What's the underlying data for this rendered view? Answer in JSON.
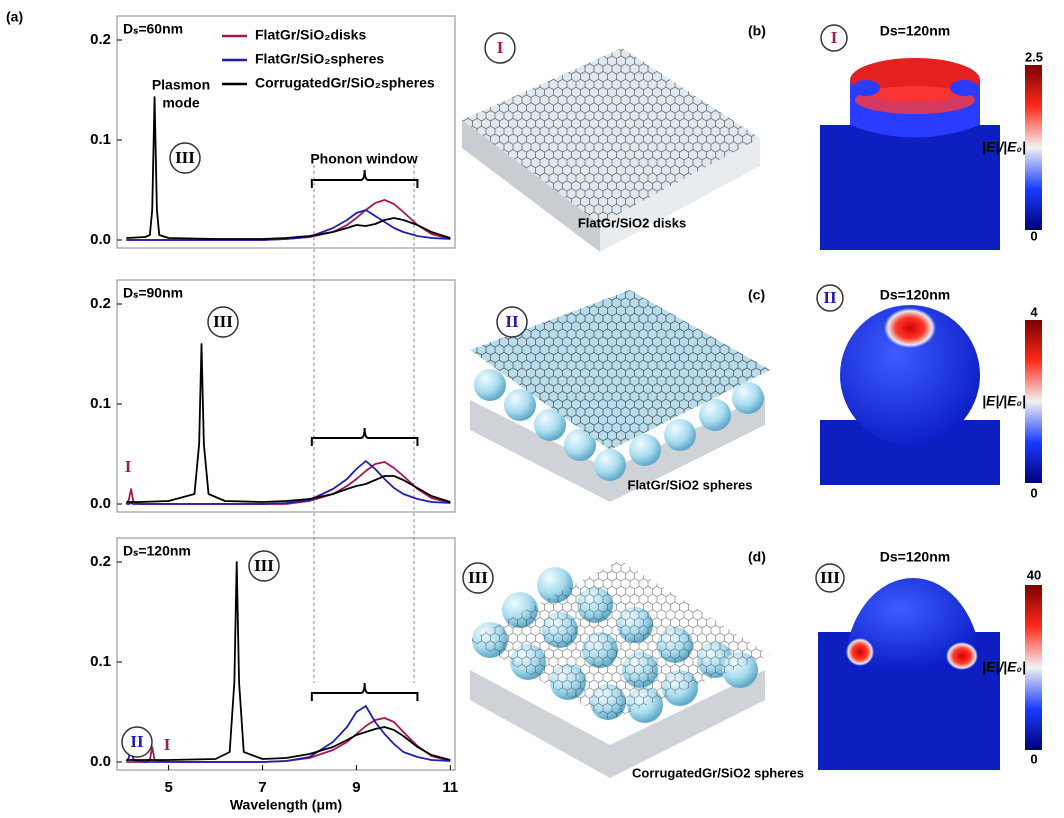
{
  "figure": {
    "panel_label": "(a)",
    "x_label": "Wavelength (μm)"
  },
  "chart_data": [
    {
      "type": "line",
      "label": "Dₛ=60nm",
      "legend": true,
      "annotations": [
        "Plasmon",
        "mode",
        "III",
        "Phonon window"
      ],
      "xlim": [
        3.9,
        11.1
      ],
      "ylim": [
        -0.008,
        0.224
      ],
      "yticks": [
        {
          "value": 0,
          "label": "0.0"
        },
        0.1,
        0.2
      ],
      "x": [
        4.1,
        4.5,
        4.6,
        4.65,
        4.7,
        4.75,
        4.8,
        5.0,
        6,
        7,
        7.5,
        8,
        8.5,
        8.8,
        9.0,
        9.2,
        9.4,
        9.6,
        9.8,
        10.0,
        10.3,
        10.6,
        11
      ],
      "series": [
        {
          "name": "FlatGr/SiO₂disks",
          "color": "#a8164e",
          "values": [
            0,
            0,
            0,
            0,
            0,
            0,
            0,
            0,
            0,
            0,
            0.001,
            0.003,
            0.008,
            0.015,
            0.022,
            0.03,
            0.037,
            0.04,
            0.036,
            0.028,
            0.015,
            0.006,
            0.001
          ]
        },
        {
          "name": "FlatGr/SiO₂spheres",
          "color": "#1f1fb4",
          "values": [
            0,
            0,
            0,
            0,
            0,
            0,
            0,
            0,
            0,
            0,
            0.001,
            0.003,
            0.012,
            0.02,
            0.027,
            0.03,
            0.024,
            0.018,
            0.012,
            0.008,
            0.004,
            0.002,
            0.001
          ]
        },
        {
          "name": "CorrugatedGr/SiO₂spheres",
          "color": "#000000",
          "values": [
            0.002,
            0.003,
            0.005,
            0.03,
            0.143,
            0.03,
            0.005,
            0.002,
            0.001,
            0.001,
            0.002,
            0.004,
            0.008,
            0.012,
            0.015,
            0.014,
            0.016,
            0.02,
            0.022,
            0.02,
            0.015,
            0.008,
            0.002
          ]
        }
      ]
    },
    {
      "type": "line",
      "label": "Dₛ=90nm",
      "legend": false,
      "annotations": [
        "III",
        "I"
      ],
      "xlim": [
        3.9,
        11.1
      ],
      "ylim": [
        -0.008,
        0.224
      ],
      "yticks": [
        {
          "value": 0,
          "label": "0.0"
        },
        0.1,
        0.2
      ],
      "x": [
        4.1,
        4.15,
        4.2,
        4.25,
        4.4,
        5.0,
        5.55,
        5.65,
        5.7,
        5.75,
        5.85,
        6.2,
        7,
        7.5,
        8,
        8.5,
        8.8,
        9.0,
        9.2,
        9.4,
        9.6,
        9.8,
        10.0,
        10.3,
        10.6,
        11
      ],
      "series": [
        {
          "color": "#a8164e",
          "values": [
            0,
            0.004,
            0.015,
            0.002,
            0,
            0,
            0,
            0,
            0,
            0,
            0,
            0,
            0,
            0,
            0.003,
            0.01,
            0.018,
            0.025,
            0.033,
            0.04,
            0.042,
            0.036,
            0.028,
            0.015,
            0.006,
            0.001
          ]
        },
        {
          "color": "#1f1fb4",
          "values": [
            0,
            0,
            0.001,
            0,
            0,
            0,
            0,
            0,
            0,
            0,
            0,
            0,
            0,
            0.001,
            0.004,
            0.015,
            0.025,
            0.035,
            0.043,
            0.035,
            0.025,
            0.016,
            0.01,
            0.005,
            0.002,
            0.001
          ]
        },
        {
          "color": "#000000",
          "values": [
            0.002,
            0.002,
            0.002,
            0.002,
            0.002,
            0.003,
            0.01,
            0.06,
            0.16,
            0.06,
            0.01,
            0.003,
            0.002,
            0.003,
            0.005,
            0.01,
            0.015,
            0.018,
            0.02,
            0.024,
            0.028,
            0.028,
            0.024,
            0.016,
            0.008,
            0.002
          ]
        }
      ]
    },
    {
      "type": "line",
      "label": "Dₛ=120nm",
      "legend": false,
      "annotations": [
        "III",
        "II",
        "I"
      ],
      "xlim": [
        3.9,
        11.1
      ],
      "ylim": [
        -0.008,
        0.224
      ],
      "xticks": [
        5,
        7,
        9,
        11
      ],
      "yticks": [
        {
          "value": 0,
          "label": "0.0"
        },
        0.1,
        0.2
      ],
      "x": [
        4.1,
        4.15,
        4.2,
        4.25,
        4.5,
        4.6,
        4.65,
        4.7,
        5.0,
        6.0,
        6.3,
        6.4,
        6.45,
        6.5,
        6.6,
        7.0,
        7.5,
        8,
        8.5,
        8.8,
        9.0,
        9.2,
        9.4,
        9.6,
        9.8,
        10.0,
        10.3,
        10.6,
        11
      ],
      "series": [
        {
          "color": "#a8164e",
          "values": [
            0,
            0,
            0,
            0,
            0,
            0.002,
            0.015,
            0.002,
            0,
            0,
            0,
            0,
            0,
            0,
            0,
            0,
            0.001,
            0.004,
            0.012,
            0.02,
            0.028,
            0.036,
            0.042,
            0.044,
            0.04,
            0.03,
            0.016,
            0.006,
            0.001
          ]
        },
        {
          "color": "#1f1fb4",
          "values": [
            0.001,
            0.004,
            0.02,
            0.002,
            0,
            0,
            0,
            0,
            0,
            0,
            0,
            0,
            0,
            0,
            0,
            0,
            0.001,
            0.005,
            0.02,
            0.035,
            0.05,
            0.056,
            0.04,
            0.028,
            0.018,
            0.01,
            0.005,
            0.002,
            0.001
          ]
        },
        {
          "color": "#000000",
          "values": [
            0.002,
            0.002,
            0.002,
            0.002,
            0.002,
            0.002,
            0.002,
            0.002,
            0.002,
            0.003,
            0.01,
            0.08,
            0.2,
            0.08,
            0.01,
            0.003,
            0.004,
            0.008,
            0.015,
            0.022,
            0.027,
            0.03,
            0.033,
            0.035,
            0.032,
            0.026,
            0.015,
            0.007,
            0.002
          ]
        }
      ]
    }
  ],
  "illustrations": [
    {
      "numeral": "I",
      "caption": "FlatGr/SiO2 disks"
    },
    {
      "numeral": "II",
      "caption": "FlatGr/SiO2 spheres"
    },
    {
      "numeral": "III",
      "caption": "CorrugatedGr/SiO2 spheres"
    }
  ],
  "field_maps": [
    {
      "label": "(b)",
      "numeral": "I",
      "title": "Ds=120nm",
      "colorbar_max": 2.5,
      "colorbar_min": 0,
      "quantity": "|E|/|E₀|"
    },
    {
      "label": "(c)",
      "numeral": "II",
      "title": "Ds=120nm",
      "colorbar_max": 4,
      "colorbar_min": 0,
      "quantity": "|E|/|E₀|"
    },
    {
      "label": "(d)",
      "numeral": "III",
      "title": "Ds=120nm",
      "colorbar_max": 40,
      "colorbar_min": 0,
      "quantity": "|E|/|E₀|"
    }
  ]
}
